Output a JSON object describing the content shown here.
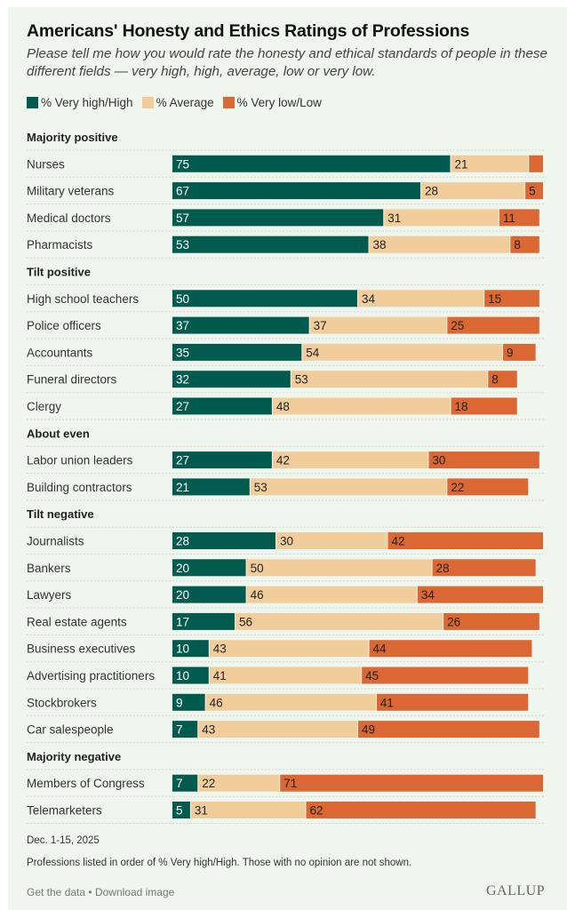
{
  "title": "Americans' Honesty and Ethics Ratings of Professions",
  "subtitle": "Please tell me how you would rate the honesty and ethical standards of people in these different fields — very high, high, average, low or very low.",
  "legend": [
    {
      "label": "% Very high/High",
      "color": "#005a4e"
    },
    {
      "label": "% Average",
      "color": "#f2cd9c"
    },
    {
      "label": "% Very low/Low",
      "color": "#db6732"
    }
  ],
  "chart_data": {
    "type": "bar",
    "orientation": "horizontal",
    "stacked": true,
    "xlim": [
      0,
      100
    ],
    "series": [
      {
        "name": "% Very high/High",
        "color": "#005a4e"
      },
      {
        "name": "% Average",
        "color": "#f2cd9c"
      },
      {
        "name": "% Very low/Low",
        "color": "#db6732"
      }
    ],
    "groups": [
      {
        "label": "Majority positive",
        "rows": [
          {
            "label": "Nurses",
            "values": [
              75,
              21,
              4
            ],
            "show_label": [
              true,
              true,
              false
            ]
          },
          {
            "label": "Military veterans",
            "values": [
              67,
              28,
              5
            ]
          },
          {
            "label": "Medical doctors",
            "values": [
              57,
              31,
              11
            ]
          },
          {
            "label": "Pharmacists",
            "values": [
              53,
              38,
              8
            ]
          }
        ]
      },
      {
        "label": "Tilt positive",
        "rows": [
          {
            "label": "High school teachers",
            "values": [
              50,
              34,
              15
            ]
          },
          {
            "label": "Police officers",
            "values": [
              37,
              37,
              25
            ]
          },
          {
            "label": "Accountants",
            "values": [
              35,
              54,
              9
            ]
          },
          {
            "label": "Funeral directors",
            "values": [
              32,
              53,
              8
            ]
          },
          {
            "label": "Clergy",
            "values": [
              27,
              48,
              18
            ]
          }
        ]
      },
      {
        "label": "About even",
        "rows": [
          {
            "label": "Labor union leaders",
            "values": [
              27,
              42,
              30
            ]
          },
          {
            "label": "Building contractors",
            "values": [
              21,
              53,
              22
            ]
          }
        ]
      },
      {
        "label": "Tilt negative",
        "rows": [
          {
            "label": "Journalists",
            "values": [
              28,
              30,
              42
            ]
          },
          {
            "label": "Bankers",
            "values": [
              20,
              50,
              28
            ]
          },
          {
            "label": "Lawyers",
            "values": [
              20,
              46,
              34
            ]
          },
          {
            "label": "Real estate agents",
            "values": [
              17,
              56,
              26
            ]
          },
          {
            "label": "Business executives",
            "values": [
              10,
              43,
              44
            ]
          },
          {
            "label": "Advertising practitioners",
            "values": [
              10,
              41,
              45
            ]
          },
          {
            "label": "Stockbrokers",
            "values": [
              9,
              46,
              41
            ]
          },
          {
            "label": "Car salespeople",
            "values": [
              7,
              43,
              49
            ]
          }
        ]
      },
      {
        "label": "Majority negative",
        "rows": [
          {
            "label": "Members of Congress",
            "values": [
              7,
              22,
              71
            ]
          },
          {
            "label": "Telemarketers",
            "values": [
              5,
              31,
              62
            ]
          }
        ]
      }
    ]
  },
  "footer": {
    "date": "Dec. 1-15, 2025",
    "note": "Professions listed in order of % Very high/High. Those with no opinion are not shown.",
    "get_data": "Get the data",
    "separator": "•",
    "download": "Download image",
    "logo": "GALLUP"
  }
}
